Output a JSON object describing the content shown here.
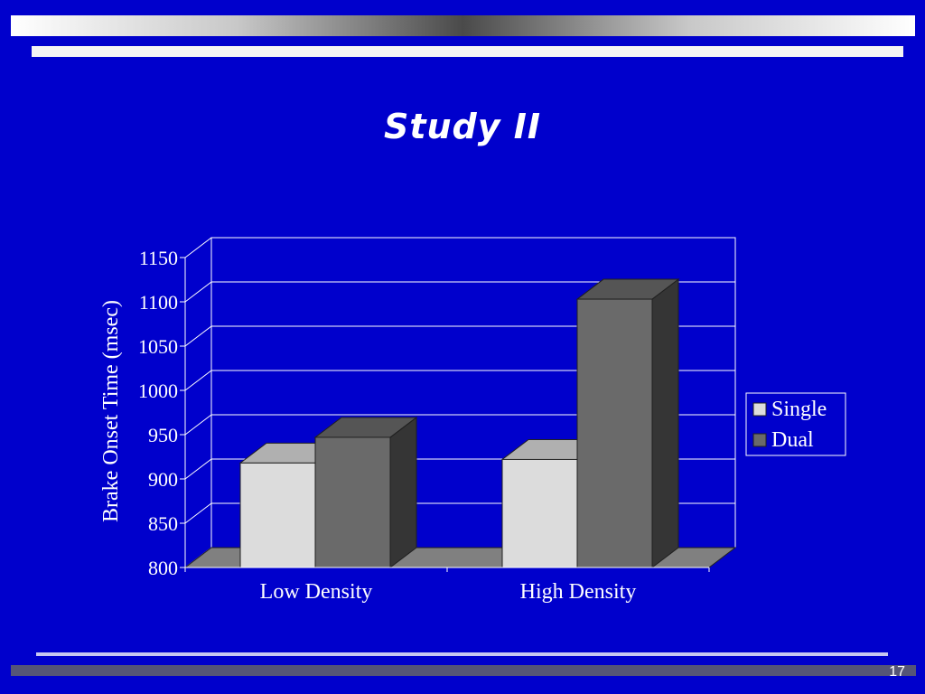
{
  "slide": {
    "title": "Study II",
    "page_number": "17"
  },
  "colors": {
    "background": "#0000cc",
    "single": "#dcdcdc",
    "dual": "#6a6a6a"
  },
  "chart_data": {
    "type": "bar",
    "title": "",
    "xlabel": "",
    "ylabel": "Brake Onset Time (msec)",
    "categories": [
      "Low Density",
      "High Density"
    ],
    "series": [
      {
        "name": "Single",
        "values": [
          918,
          922
        ]
      },
      {
        "name": "Dual",
        "values": [
          947,
          1103
        ]
      }
    ],
    "ylim": [
      800,
      1150
    ],
    "yticks": [
      800,
      850,
      900,
      950,
      1000,
      1050,
      1100,
      1150
    ],
    "grid": true,
    "legend": "right",
    "style": "3d"
  }
}
